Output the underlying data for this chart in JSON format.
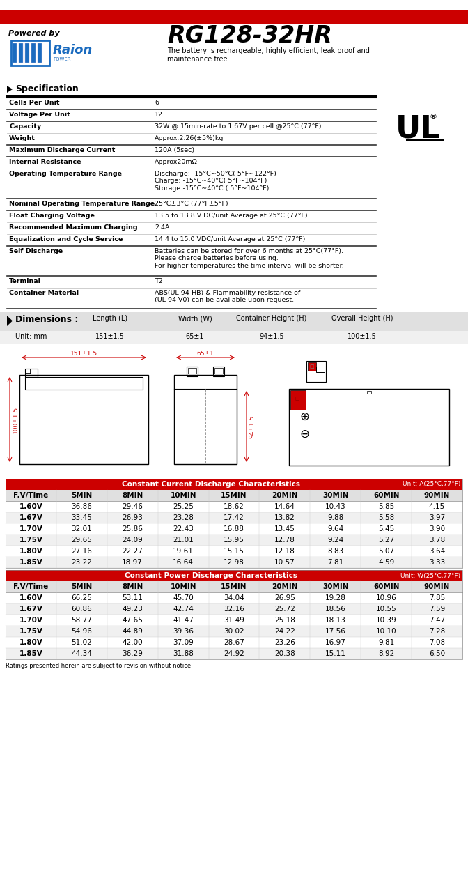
{
  "title": "RG128-32HR",
  "powered_by": "Powered by",
  "subtitle": "The battery is rechargeable, highly efficient, leak proof and\nmaintenance free.",
  "spec_title": "Specification",
  "red_bar_color": "#CC0000",
  "dim_bg": "#e8e8e8",
  "table_header_bg": "#cc0000",
  "spec_rows": [
    {
      "label": "Cells Per Unit",
      "value": "6",
      "lines": 1
    },
    {
      "label": "Voltage Per Unit",
      "value": "12",
      "lines": 1
    },
    {
      "label": "Capacity",
      "value": "32W @ 15min-rate to 1.67V per cell @25°C (77°F)",
      "lines": 1
    },
    {
      "label": "Weight",
      "value": "Approx.2.26(±5%)kg",
      "lines": 1
    },
    {
      "label": "Maximum Discharge Current",
      "value": "120A (5sec)",
      "lines": 1
    },
    {
      "label": "Internal Resistance",
      "value": "Approx20mΩ",
      "lines": 1
    },
    {
      "label": "Operating Temperature Range",
      "value": "Discharge: -15°C~50°C( 5°F~122°F)\nCharge: -15°C~40°C( 5°F~104°F)\nStorage:-15°C~40°C ( 5°F~104°F)",
      "lines": 3
    },
    {
      "label": "Nominal Operating Temperature Range",
      "value": "25°C±3°C (77°F±5°F)",
      "lines": 1
    },
    {
      "label": "Float Charging Voltage",
      "value": "13.5 to 13.8 V DC/unit Average at 25°C (77°F)",
      "lines": 1
    },
    {
      "label": "Recommended Maximum Charging",
      "value": "2.4A",
      "lines": 1
    },
    {
      "label": "Equalization and Cycle Service",
      "value": "14.4 to 15.0 VDC/unit Average at 25°C (77°F)",
      "lines": 1
    },
    {
      "label": "Self Discharge",
      "value": "Batteries can be stored for over 6 months at 25°C(77°F).\nPlease charge batteries before using.\nFor higher temperatures the time interval will be shorter.",
      "lines": 3
    },
    {
      "label": "Terminal",
      "value": "T2",
      "lines": 1
    },
    {
      "label": "Container Material",
      "value": "ABS(UL 94-HB) & Flammability resistance of\n(UL 94-V0) can be available upon request.",
      "lines": 2
    }
  ],
  "dim_title": "Dimensions :",
  "dim_headers": [
    "Length (L)",
    "Width (W)",
    "Container Height (H)",
    "Overall Height (H)"
  ],
  "dim_unit": "Unit: mm",
  "dim_values": [
    "151±1.5",
    "65±1",
    "94±1.5",
    "100±1.5"
  ],
  "cc_title": "Constant Current Discharge Characteristics",
  "cc_unit": "Unit: A(25°C,77°F)",
  "cp_title": "Constant Power Discharge Characteristics",
  "cp_unit": "Unit: W(25°C,77°F)",
  "time_headers": [
    "F.V/Time",
    "5MIN",
    "8MIN",
    "10MIN",
    "15MIN",
    "20MIN",
    "30MIN",
    "60MIN",
    "90MIN"
  ],
  "cc_data": [
    [
      "1.60V",
      "36.86",
      "29.46",
      "25.25",
      "18.62",
      "14.64",
      "10.43",
      "5.85",
      "4.15"
    ],
    [
      "1.67V",
      "33.45",
      "26.93",
      "23.28",
      "17.42",
      "13.82",
      "9.88",
      "5.58",
      "3.97"
    ],
    [
      "1.70V",
      "32.01",
      "25.86",
      "22.43",
      "16.88",
      "13.45",
      "9.64",
      "5.45",
      "3.90"
    ],
    [
      "1.75V",
      "29.65",
      "24.09",
      "21.01",
      "15.95",
      "12.78",
      "9.24",
      "5.27",
      "3.78"
    ],
    [
      "1.80V",
      "27.16",
      "22.27",
      "19.61",
      "15.15",
      "12.18",
      "8.83",
      "5.07",
      "3.64"
    ],
    [
      "1.85V",
      "23.22",
      "18.97",
      "16.64",
      "12.98",
      "10.57",
      "7.81",
      "4.59",
      "3.33"
    ]
  ],
  "cp_data": [
    [
      "1.60V",
      "66.25",
      "53.11",
      "45.70",
      "34.04",
      "26.95",
      "19.28",
      "10.96",
      "7.85"
    ],
    [
      "1.67V",
      "60.86",
      "49.23",
      "42.74",
      "32.16",
      "25.72",
      "18.56",
      "10.55",
      "7.59"
    ],
    [
      "1.70V",
      "58.77",
      "47.65",
      "41.47",
      "31.49",
      "25.18",
      "18.13",
      "10.39",
      "7.47"
    ],
    [
      "1.75V",
      "54.96",
      "44.89",
      "39.36",
      "30.02",
      "24.22",
      "17.56",
      "10.10",
      "7.28"
    ],
    [
      "1.80V",
      "51.02",
      "42.00",
      "37.09",
      "28.67",
      "23.26",
      "16.97",
      "9.81",
      "7.08"
    ],
    [
      "1.85V",
      "44.34",
      "36.29",
      "31.88",
      "24.92",
      "20.38",
      "15.11",
      "8.92",
      "6.50"
    ]
  ],
  "footer": "Ratings presented herein are subject to revision without notice."
}
